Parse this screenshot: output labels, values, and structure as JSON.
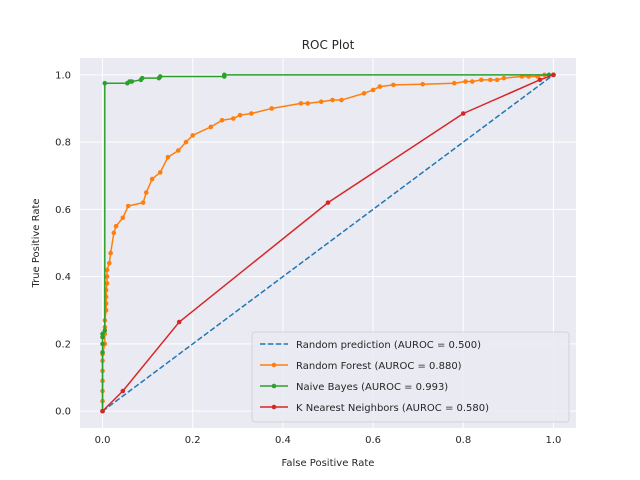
{
  "chart_data": {
    "type": "line",
    "title": "ROC Plot",
    "xlabel": "False Positive Rate",
    "ylabel": "True Positive Rate",
    "xlim": [
      -0.05,
      1.05
    ],
    "ylim": [
      -0.05,
      1.05
    ],
    "xticks": [
      "0.0",
      "0.2",
      "0.4",
      "0.6",
      "0.8",
      "1.0"
    ],
    "yticks": [
      "0.0",
      "0.2",
      "0.4",
      "0.6",
      "0.8",
      "1.0"
    ],
    "grid": true,
    "background": "#eaeaf2",
    "legend_position": "lower-right",
    "series": [
      {
        "name": "Random prediction (AUROC = 0.500)",
        "color": "#1f77b4",
        "style": "dashed",
        "marker": false,
        "x": [
          0.0,
          1.0
        ],
        "y": [
          0.0,
          1.0
        ]
      },
      {
        "name": "Random Forest (AUROC = 0.880)",
        "color": "#ff7f0e",
        "style": "solid",
        "marker": true,
        "x": [
          0.0,
          0.0,
          0.0,
          0.0,
          0.0,
          0.0,
          0.0,
          0.005,
          0.005,
          0.005,
          0.005,
          0.008,
          0.008,
          0.008,
          0.008,
          0.01,
          0.01,
          0.01,
          0.015,
          0.018,
          0.025,
          0.03,
          0.045,
          0.057,
          0.09,
          0.097,
          0.11,
          0.128,
          0.145,
          0.168,
          0.185,
          0.2,
          0.24,
          0.265,
          0.29,
          0.305,
          0.33,
          0.375,
          0.44,
          0.455,
          0.485,
          0.51,
          0.53,
          0.58,
          0.6,
          0.615,
          0.645,
          0.71,
          0.78,
          0.805,
          0.82,
          0.84,
          0.86,
          0.875,
          0.89,
          0.93,
          0.945,
          0.965,
          0.98,
          1.0
        ],
        "y": [
          0.0,
          0.03,
          0.06,
          0.09,
          0.12,
          0.15,
          0.17,
          0.2,
          0.23,
          0.25,
          0.27,
          0.3,
          0.32,
          0.34,
          0.36,
          0.38,
          0.4,
          0.42,
          0.44,
          0.47,
          0.53,
          0.55,
          0.575,
          0.61,
          0.62,
          0.65,
          0.69,
          0.71,
          0.755,
          0.775,
          0.8,
          0.82,
          0.845,
          0.865,
          0.87,
          0.88,
          0.885,
          0.9,
          0.915,
          0.915,
          0.92,
          0.925,
          0.925,
          0.945,
          0.955,
          0.965,
          0.97,
          0.972,
          0.975,
          0.98,
          0.98,
          0.985,
          0.985,
          0.985,
          0.99,
          0.995,
          0.995,
          0.995,
          1.0,
          1.0
        ]
      },
      {
        "name": "Naive Bayes (AUROC = 0.993)",
        "color": "#2ca02c",
        "style": "solid",
        "marker": true,
        "x": [
          0.0,
          0.0,
          0.0,
          0.0,
          0.0,
          0.005,
          0.005,
          0.055,
          0.06,
          0.065,
          0.085,
          0.088,
          0.125,
          0.128,
          0.27,
          0.27,
          0.99,
          1.0
        ],
        "y": [
          0.0,
          0.175,
          0.2,
          0.22,
          0.23,
          0.24,
          0.975,
          0.975,
          0.98,
          0.98,
          0.985,
          0.99,
          0.99,
          0.995,
          0.995,
          1.0,
          1.0,
          1.0
        ]
      },
      {
        "name": "K Nearest Neighbors (AUROC = 0.580)",
        "color": "#d62728",
        "style": "solid",
        "marker": true,
        "x": [
          0.0,
          0.045,
          0.17,
          0.5,
          0.8,
          0.97,
          1.0
        ],
        "y": [
          0.0,
          0.06,
          0.265,
          0.62,
          0.885,
          0.985,
          1.0
        ]
      }
    ]
  }
}
